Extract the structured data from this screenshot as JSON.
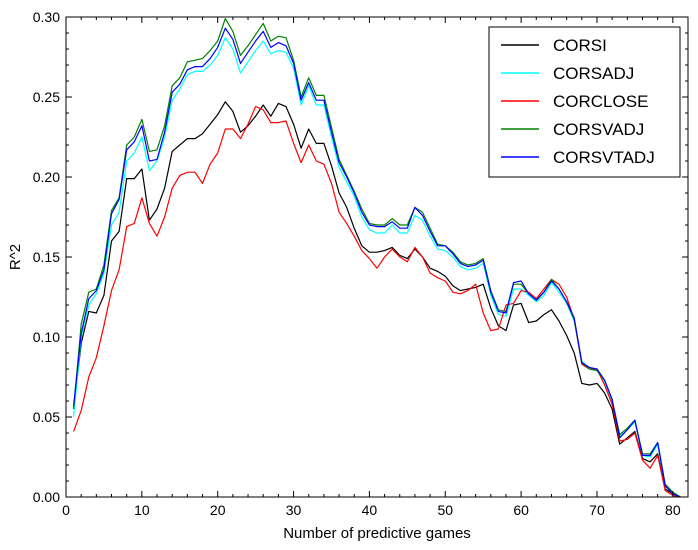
{
  "chart_data": {
    "type": "line",
    "xlabel": "Number of predictive games",
    "ylabel": "R^2",
    "xlim": [
      0,
      82
    ],
    "ylim": [
      0.0,
      0.3
    ],
    "xticks": [
      "0",
      "10",
      "20",
      "30",
      "40",
      "50",
      "60",
      "70",
      "80"
    ],
    "yticks": [
      "0.00",
      "0.05",
      "0.10",
      "0.15",
      "0.20",
      "0.25",
      "0.30"
    ],
    "legend_position": "top-right",
    "x": [
      1,
      2,
      3,
      4,
      5,
      6,
      7,
      8,
      9,
      10,
      11,
      12,
      13,
      14,
      15,
      16,
      17,
      18,
      19,
      20,
      21,
      22,
      23,
      24,
      25,
      26,
      27,
      28,
      29,
      30,
      31,
      32,
      33,
      34,
      35,
      36,
      37,
      38,
      39,
      40,
      41,
      42,
      43,
      44,
      45,
      46,
      47,
      48,
      49,
      50,
      51,
      52,
      53,
      54,
      55,
      56,
      57,
      58,
      59,
      60,
      61,
      62,
      63,
      64,
      65,
      66,
      67,
      68,
      69,
      70,
      71,
      72,
      73,
      74,
      75,
      76,
      77,
      78,
      79,
      80,
      81
    ],
    "series": [
      {
        "name": "CORSI",
        "color": "#000000",
        "values": [
          0.055,
          0.096,
          0.116,
          0.115,
          0.126,
          0.16,
          0.166,
          0.199,
          0.199,
          0.205,
          0.173,
          0.18,
          0.193,
          0.216,
          0.22,
          0.224,
          0.224,
          0.227,
          0.233,
          0.239,
          0.247,
          0.241,
          0.228,
          0.232,
          0.238,
          0.245,
          0.238,
          0.246,
          0.244,
          0.233,
          0.218,
          0.23,
          0.221,
          0.221,
          0.207,
          0.19,
          0.181,
          0.168,
          0.157,
          0.153,
          0.153,
          0.154,
          0.156,
          0.151,
          0.149,
          0.155,
          0.15,
          0.143,
          0.141,
          0.138,
          0.132,
          0.129,
          0.13,
          0.131,
          0.133,
          0.118,
          0.107,
          0.104,
          0.12,
          0.121,
          0.109,
          0.11,
          0.114,
          0.117,
          0.11,
          0.101,
          0.09,
          0.071,
          0.07,
          0.071,
          0.065,
          0.055,
          0.033,
          0.037,
          0.041,
          0.024,
          0.022,
          0.027,
          0.005,
          0.002,
          0.0
        ]
      },
      {
        "name": "CORSADJ",
        "color": "#00ffff",
        "values": [
          0.05,
          0.1,
          0.12,
          0.127,
          0.14,
          0.17,
          0.178,
          0.21,
          0.215,
          0.225,
          0.204,
          0.21,
          0.225,
          0.248,
          0.255,
          0.264,
          0.266,
          0.266,
          0.27,
          0.276,
          0.287,
          0.28,
          0.265,
          0.272,
          0.279,
          0.285,
          0.277,
          0.279,
          0.278,
          0.268,
          0.245,
          0.257,
          0.245,
          0.245,
          0.225,
          0.206,
          0.197,
          0.188,
          0.175,
          0.167,
          0.165,
          0.165,
          0.17,
          0.165,
          0.165,
          0.176,
          0.173,
          0.163,
          0.155,
          0.154,
          0.15,
          0.144,
          0.142,
          0.143,
          0.146,
          0.126,
          0.114,
          0.113,
          0.13,
          0.13,
          0.126,
          0.122,
          0.126,
          0.134,
          0.128,
          0.121,
          0.11,
          0.085,
          0.08,
          0.079,
          0.072,
          0.06,
          0.038,
          0.042,
          0.047,
          0.026,
          0.025,
          0.033,
          0.007,
          0.003,
          0.0
        ]
      },
      {
        "name": "CORCLOSE",
        "color": "#ff0000",
        "values": [
          0.041,
          0.054,
          0.075,
          0.087,
          0.107,
          0.129,
          0.142,
          0.169,
          0.171,
          0.187,
          0.171,
          0.163,
          0.175,
          0.193,
          0.201,
          0.203,
          0.203,
          0.196,
          0.208,
          0.215,
          0.23,
          0.23,
          0.224,
          0.233,
          0.244,
          0.242,
          0.234,
          0.234,
          0.235,
          0.221,
          0.209,
          0.22,
          0.21,
          0.208,
          0.196,
          0.178,
          0.171,
          0.163,
          0.154,
          0.149,
          0.143,
          0.15,
          0.155,
          0.15,
          0.147,
          0.156,
          0.15,
          0.14,
          0.137,
          0.135,
          0.128,
          0.127,
          0.129,
          0.133,
          0.115,
          0.104,
          0.105,
          0.12,
          0.121,
          0.129,
          0.128,
          0.124,
          0.13,
          0.136,
          0.133,
          0.125,
          0.111,
          0.083,
          0.08,
          0.08,
          0.07,
          0.058,
          0.035,
          0.036,
          0.04,
          0.023,
          0.018,
          0.026,
          0.004,
          0.001,
          0.0
        ]
      },
      {
        "name": "CORSVADJ",
        "color": "#008000",
        "values": [
          0.055,
          0.108,
          0.128,
          0.13,
          0.145,
          0.179,
          0.187,
          0.22,
          0.225,
          0.236,
          0.216,
          0.217,
          0.232,
          0.257,
          0.262,
          0.272,
          0.273,
          0.274,
          0.279,
          0.285,
          0.299,
          0.291,
          0.276,
          0.282,
          0.289,
          0.296,
          0.285,
          0.288,
          0.287,
          0.273,
          0.25,
          0.262,
          0.251,
          0.251,
          0.231,
          0.211,
          0.201,
          0.191,
          0.18,
          0.171,
          0.17,
          0.17,
          0.174,
          0.17,
          0.17,
          0.181,
          0.178,
          0.168,
          0.158,
          0.157,
          0.153,
          0.147,
          0.145,
          0.146,
          0.149,
          0.129,
          0.117,
          0.116,
          0.133,
          0.133,
          0.127,
          0.123,
          0.128,
          0.136,
          0.13,
          0.122,
          0.111,
          0.084,
          0.08,
          0.079,
          0.073,
          0.061,
          0.039,
          0.043,
          0.048,
          0.027,
          0.027,
          0.034,
          0.008,
          0.003,
          0.0
        ]
      },
      {
        "name": "CORSVTADJ",
        "color": "#0000ff",
        "values": [
          0.057,
          0.102,
          0.124,
          0.129,
          0.142,
          0.177,
          0.186,
          0.217,
          0.222,
          0.232,
          0.21,
          0.211,
          0.228,
          0.253,
          0.258,
          0.267,
          0.269,
          0.269,
          0.274,
          0.281,
          0.293,
          0.286,
          0.271,
          0.278,
          0.285,
          0.291,
          0.281,
          0.284,
          0.282,
          0.271,
          0.248,
          0.259,
          0.248,
          0.248,
          0.228,
          0.209,
          0.2,
          0.19,
          0.178,
          0.17,
          0.169,
          0.169,
          0.172,
          0.168,
          0.168,
          0.181,
          0.176,
          0.166,
          0.157,
          0.157,
          0.152,
          0.146,
          0.144,
          0.145,
          0.148,
          0.128,
          0.116,
          0.115,
          0.134,
          0.135,
          0.127,
          0.123,
          0.128,
          0.135,
          0.13,
          0.122,
          0.112,
          0.084,
          0.081,
          0.08,
          0.073,
          0.061,
          0.037,
          0.042,
          0.048,
          0.026,
          0.026,
          0.034,
          0.007,
          0.002,
          0.0
        ]
      }
    ]
  }
}
